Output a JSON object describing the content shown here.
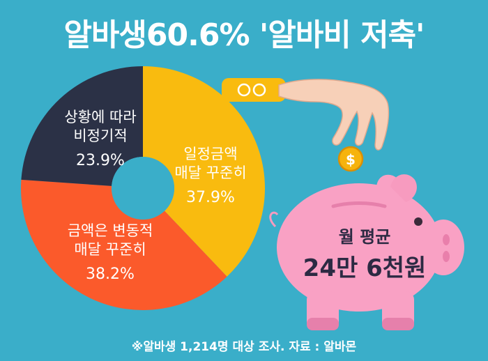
{
  "header": {
    "title": "알바생60.6% '알바비 저축'"
  },
  "chart_data": {
    "type": "pie",
    "slices": [
      {
        "label_line1": "일정금액",
        "label_line2": "매달 꾸준히",
        "value": 37.9,
        "value_text": "37.9%",
        "color": "#f9bb0f"
      },
      {
        "label_line1": "금액은 변동적",
        "label_line2": "매달 꾸준히",
        "value": 38.2,
        "value_text": "38.2%",
        "color": "#fb5a2b"
      },
      {
        "label_line1": "상황에 따라",
        "label_line2": "비정기적",
        "value": 23.9,
        "value_text": "23.9%",
        "color": "#2b3146"
      }
    ]
  },
  "callout": {
    "label": "월 평균",
    "value": "24만 6천원"
  },
  "footnote": "※알바생 1,214명 대상 조사. 자료 : 알바몬",
  "colors": {
    "background": "#3aaec9",
    "pig": "#f9a1c4",
    "hand": "#f7d0b8",
    "coin": "#f6b30d",
    "sleeve": "#f9bb0f"
  }
}
